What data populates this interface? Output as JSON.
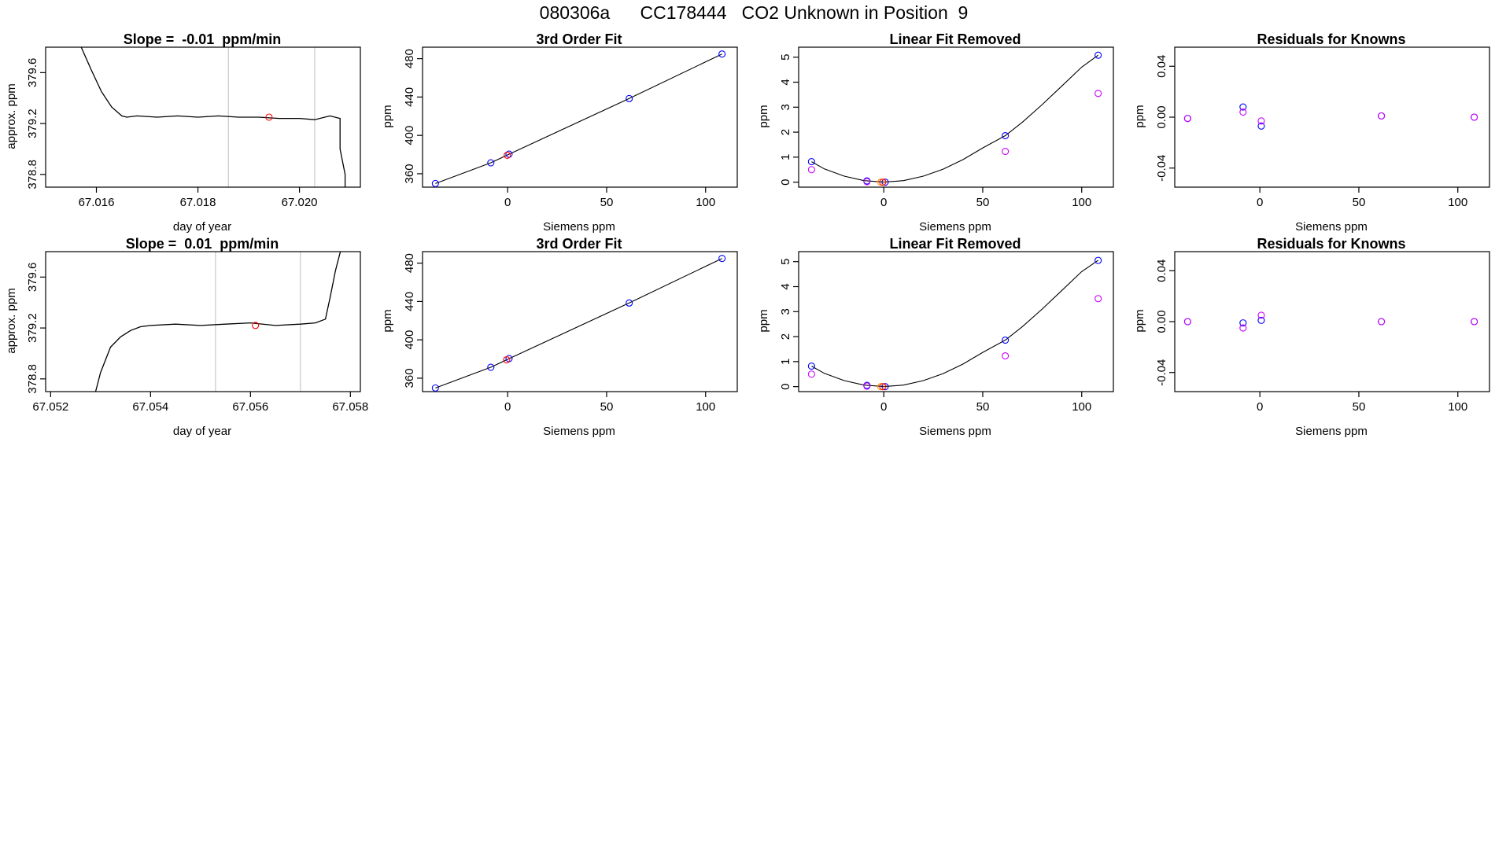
{
  "figure_title": "080306a      CC178444   CO2 Unknown in Position  9",
  "colors": {
    "line": "#000000",
    "known_point": "#0000ff",
    "residual_alt": "#cc00ff",
    "unknown_point": "#ff0000",
    "fit_alt": "#ff9900",
    "vertical_marker": "#c8c8c8"
  },
  "chart_data": [
    {
      "type": "line",
      "title": "Slope =  -0.01  ppm/min",
      "xlabel": "day of year",
      "ylabel": "approx. ppm",
      "xlim": [
        67.015,
        67.0212
      ],
      "ylim": [
        378.7,
        379.8
      ],
      "xticks": [
        "67.016",
        "67.018",
        "67.020"
      ],
      "yticks": [
        "378.8",
        "379.2",
        "379.6"
      ],
      "vlines": [
        67.0186,
        67.0203
      ],
      "series": [
        {
          "x": [
            67.0157,
            67.0159,
            67.0161,
            67.0163,
            67.0165,
            67.0166,
            67.0168,
            67.0172,
            67.0176,
            67.018,
            67.0184,
            67.0188,
            67.0192,
            67.0196,
            67.02,
            67.0203,
            67.0206,
            67.0208,
            67.0208,
            67.0209,
            67.0209
          ],
          "y": [
            379.8,
            379.62,
            379.45,
            379.33,
            379.26,
            379.25,
            379.26,
            379.25,
            379.26,
            379.25,
            379.26,
            379.25,
            379.25,
            379.24,
            379.24,
            379.23,
            379.26,
            379.24,
            379.0,
            378.8,
            378.7
          ]
        }
      ],
      "points": [
        {
          "x": 67.0194,
          "y": 379.25,
          "role": "unknown"
        }
      ]
    },
    {
      "type": "scatter",
      "title": "3rd Order Fit",
      "xlabel": "Siemens ppm",
      "ylabel": "ppm",
      "xlim": [
        -43,
        116
      ],
      "ylim": [
        346,
        492
      ],
      "xticks": [
        "0",
        "50",
        "100"
      ],
      "yticks": [
        "360",
        "400",
        "440",
        "480"
      ],
      "curve": {
        "x": [
          -36.5,
          -8.5,
          0.7,
          61.4,
          108.3
        ],
        "y": [
          349.8,
          371.4,
          380.4,
          438.4,
          484.9
        ]
      },
      "points": [
        {
          "x": -36.5,
          "y": 349.8,
          "role": "known"
        },
        {
          "x": -8.5,
          "y": 371.4,
          "role": "known"
        },
        {
          "x": 0.7,
          "y": 380.4,
          "role": "known"
        },
        {
          "x": 61.4,
          "y": 438.4,
          "role": "known"
        },
        {
          "x": 108.3,
          "y": 484.9,
          "role": "known"
        },
        {
          "x": -0.2,
          "y": 379.3,
          "role": "unknown"
        }
      ]
    },
    {
      "type": "scatter",
      "title": "Linear Fit Removed",
      "xlabel": "Siemens ppm",
      "ylabel": "ppm",
      "xlim": [
        -43,
        116
      ],
      "ylim": [
        -0.2,
        5.4
      ],
      "xticks": [
        "0",
        "50",
        "100"
      ],
      "yticks": [
        "0",
        "1",
        "2",
        "3",
        "4",
        "5"
      ],
      "curve": {
        "x": [
          -36.5,
          -30,
          -20,
          -10,
          0,
          10,
          20,
          30,
          40,
          50,
          61.4,
          70,
          80,
          90,
          100,
          108.3
        ],
        "y": [
          0.82,
          0.53,
          0.24,
          0.06,
          0.0,
          0.06,
          0.24,
          0.52,
          0.9,
          1.37,
          1.86,
          2.4,
          3.1,
          3.85,
          4.6,
          5.08
        ]
      },
      "points": [
        {
          "x": -36.5,
          "y": 0.82,
          "role": "known"
        },
        {
          "x": -8.5,
          "y": 0.05,
          "role": "known"
        },
        {
          "x": 0.7,
          "y": 0.0,
          "role": "known"
        },
        {
          "x": 61.4,
          "y": 1.86,
          "role": "known"
        },
        {
          "x": 108.3,
          "y": 5.08,
          "role": "known"
        },
        {
          "x": -36.5,
          "y": 0.5,
          "role": "alt"
        },
        {
          "x": -8.5,
          "y": 0.02,
          "role": "alt"
        },
        {
          "x": 61.4,
          "y": 1.23,
          "role": "alt"
        },
        {
          "x": 108.3,
          "y": 3.55,
          "role": "alt"
        },
        {
          "x": -1.5,
          "y": 0.0,
          "role": "fit_alt"
        },
        {
          "x": -0.5,
          "y": 0.0,
          "role": "unknown"
        }
      ]
    },
    {
      "type": "scatter",
      "title": "Residuals for Knowns",
      "xlabel": "Siemens ppm",
      "ylabel": "ppm",
      "xlim": [
        -43,
        116
      ],
      "ylim": [
        -0.055,
        0.055
      ],
      "xticks": [
        "0",
        "50",
        "100"
      ],
      "yticks": [
        "-0.04",
        "0.00",
        "0.04"
      ],
      "points": [
        {
          "x": -36.5,
          "y": -0.001,
          "role": "known"
        },
        {
          "x": -8.5,
          "y": 0.008,
          "role": "known"
        },
        {
          "x": 0.7,
          "y": -0.007,
          "role": "known"
        },
        {
          "x": 61.4,
          "y": 0.001,
          "role": "known"
        },
        {
          "x": 108.3,
          "y": 0.0,
          "role": "known"
        },
        {
          "x": -36.5,
          "y": -0.001,
          "role": "alt"
        },
        {
          "x": -8.5,
          "y": 0.004,
          "role": "alt"
        },
        {
          "x": 0.7,
          "y": -0.003,
          "role": "alt"
        },
        {
          "x": 61.4,
          "y": 0.001,
          "role": "alt"
        },
        {
          "x": 108.3,
          "y": 0.0,
          "role": "alt"
        }
      ]
    },
    {
      "type": "line",
      "title": "Slope =  0.01  ppm/min",
      "xlabel": "day of year",
      "ylabel": "approx. ppm",
      "xlim": [
        67.0519,
        67.0582
      ],
      "ylim": [
        378.7,
        379.8
      ],
      "xticks": [
        "67.052",
        "67.054",
        "67.056",
        "67.058"
      ],
      "yticks": [
        "378.8",
        "379.2",
        "379.6"
      ],
      "vlines": [
        67.0553,
        67.057
      ],
      "series": [
        {
          "x": [
            67.0529,
            67.053,
            67.0532,
            67.0534,
            67.0536,
            67.0538,
            67.054,
            67.0545,
            67.055,
            67.0555,
            67.056,
            67.0565,
            67.057,
            67.0573,
            67.0575,
            67.0576,
            67.0577,
            67.0578
          ],
          "y": [
            378.7,
            378.85,
            379.05,
            379.13,
            379.18,
            379.21,
            379.22,
            379.23,
            379.22,
            379.23,
            379.24,
            379.22,
            379.23,
            379.24,
            379.27,
            379.45,
            379.65,
            379.8
          ]
        }
      ],
      "points": [
        {
          "x": 67.0561,
          "y": 379.22,
          "role": "unknown"
        }
      ]
    },
    {
      "type": "scatter",
      "title": "3rd Order Fit",
      "xlabel": "Siemens ppm",
      "ylabel": "ppm",
      "xlim": [
        -43,
        116
      ],
      "ylim": [
        346,
        492
      ],
      "xticks": [
        "0",
        "50",
        "100"
      ],
      "yticks": [
        "360",
        "400",
        "440",
        "480"
      ],
      "curve": {
        "x": [
          -36.5,
          -8.5,
          0.7,
          61.4,
          108.3
        ],
        "y": [
          349.8,
          371.4,
          380.4,
          438.4,
          484.9
        ]
      },
      "points": [
        {
          "x": -36.5,
          "y": 349.8,
          "role": "known"
        },
        {
          "x": -8.5,
          "y": 371.4,
          "role": "known"
        },
        {
          "x": 0.7,
          "y": 380.4,
          "role": "known"
        },
        {
          "x": 61.4,
          "y": 438.4,
          "role": "known"
        },
        {
          "x": 108.3,
          "y": 484.9,
          "role": "known"
        },
        {
          "x": -0.5,
          "y": 379.2,
          "role": "unknown"
        }
      ]
    },
    {
      "type": "scatter",
      "title": "Linear Fit Removed",
      "xlabel": "Siemens ppm",
      "ylabel": "ppm",
      "xlim": [
        -43,
        116
      ],
      "ylim": [
        -0.2,
        5.4
      ],
      "xticks": [
        "0",
        "50",
        "100"
      ],
      "yticks": [
        "0",
        "1",
        "2",
        "3",
        "4",
        "5"
      ],
      "curve": {
        "x": [
          -36.5,
          -30,
          -20,
          -10,
          0,
          10,
          20,
          30,
          40,
          50,
          61.4,
          70,
          80,
          90,
          100,
          108.3
        ],
        "y": [
          0.82,
          0.53,
          0.24,
          0.06,
          0.0,
          0.06,
          0.24,
          0.52,
          0.9,
          1.37,
          1.86,
          2.4,
          3.1,
          3.85,
          4.6,
          5.05
        ]
      },
      "points": [
        {
          "x": -36.5,
          "y": 0.82,
          "role": "known"
        },
        {
          "x": -8.5,
          "y": 0.05,
          "role": "known"
        },
        {
          "x": 0.7,
          "y": 0.0,
          "role": "known"
        },
        {
          "x": 61.4,
          "y": 1.86,
          "role": "known"
        },
        {
          "x": 108.3,
          "y": 5.05,
          "role": "known"
        },
        {
          "x": -36.5,
          "y": 0.5,
          "role": "alt"
        },
        {
          "x": -8.5,
          "y": 0.02,
          "role": "alt"
        },
        {
          "x": 61.4,
          "y": 1.23,
          "role": "alt"
        },
        {
          "x": 108.3,
          "y": 3.52,
          "role": "alt"
        },
        {
          "x": -1.5,
          "y": 0.0,
          "role": "fit_alt"
        },
        {
          "x": -0.5,
          "y": 0.0,
          "role": "unknown"
        }
      ]
    },
    {
      "type": "scatter",
      "title": "Residuals for Knowns",
      "xlabel": "Siemens ppm",
      "ylabel": "ppm",
      "xlim": [
        -43,
        116
      ],
      "ylim": [
        -0.055,
        0.055
      ],
      "xticks": [
        "0",
        "50",
        "100"
      ],
      "yticks": [
        "-0.04",
        "0.00",
        "0.04"
      ],
      "points": [
        {
          "x": -36.5,
          "y": 0.0,
          "role": "known"
        },
        {
          "x": -8.5,
          "y": -0.001,
          "role": "known"
        },
        {
          "x": 0.7,
          "y": 0.001,
          "role": "known"
        },
        {
          "x": 61.4,
          "y": 0.0,
          "role": "known"
        },
        {
          "x": 108.3,
          "y": 0.0,
          "role": "known"
        },
        {
          "x": -36.5,
          "y": 0.0,
          "role": "alt"
        },
        {
          "x": -8.5,
          "y": -0.005,
          "role": "alt"
        },
        {
          "x": 0.7,
          "y": 0.005,
          "role": "alt"
        },
        {
          "x": 61.4,
          "y": 0.0,
          "role": "alt"
        },
        {
          "x": 108.3,
          "y": 0.0,
          "role": "alt"
        }
      ]
    }
  ]
}
